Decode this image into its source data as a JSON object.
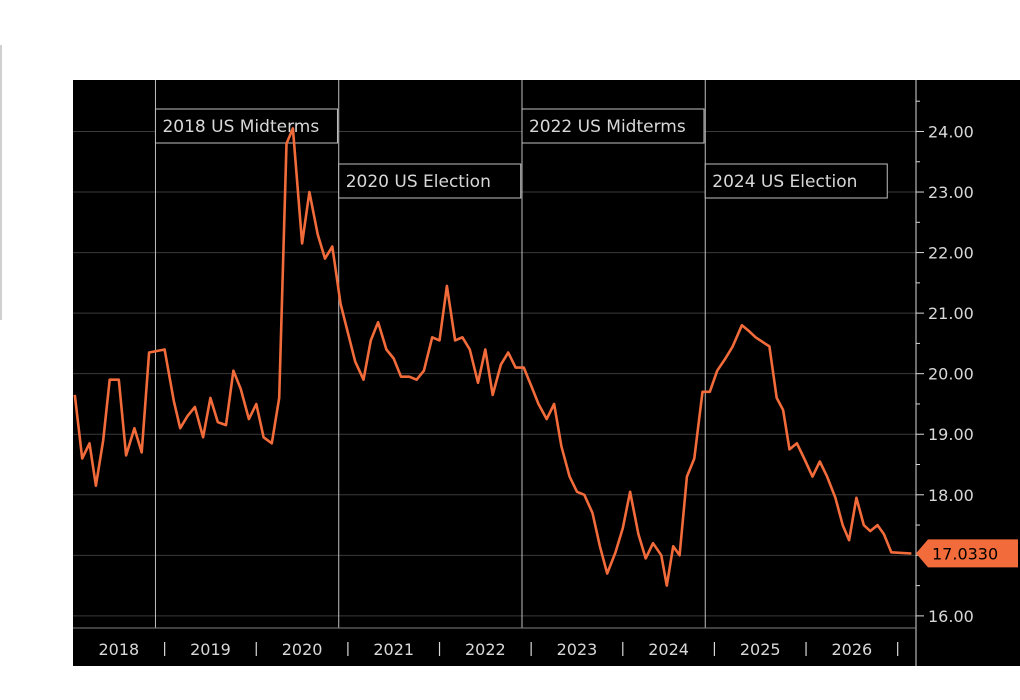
{
  "chart_data": {
    "type": "line",
    "title": "",
    "xlabel": "",
    "ylabel": "",
    "ylim": [
      15.8,
      24.85
    ],
    "xlim": [
      2017.75,
      2026.95
    ],
    "y_ticks": [
      "16.00",
      "17.00",
      "18.00",
      "19.00",
      "20.00",
      "21.00",
      "22.00",
      "23.00",
      "24.00"
    ],
    "y_tick_values": [
      16,
      17,
      18,
      19,
      20,
      21,
      22,
      23,
      24
    ],
    "x_tick_labels": [
      "2018",
      "2019",
      "2020",
      "2021",
      "2022",
      "2023",
      "2024",
      "2025",
      "2026"
    ],
    "x_tick_centers": [
      2018.25,
      2019.25,
      2020.25,
      2021.25,
      2022.25,
      2023.25,
      2024.25,
      2025.25,
      2026.25
    ],
    "x_tick_separators": [
      2018.75,
      2019.75,
      2020.75,
      2021.75,
      2022.75,
      2023.75,
      2024.75,
      2025.75,
      2026.75
    ],
    "grid": true,
    "last_value_label": "17.0330",
    "last_value": 17.033,
    "colors": {
      "background": "#000000",
      "series": "#f26b3a",
      "grid": "#3a3a3a",
      "text": "#d8d8d8",
      "label_bg": "#f26b3a",
      "event_line": "#bfbfbf"
    },
    "events": [
      {
        "label": "2018 US Midterms",
        "x": 2018.65
      },
      {
        "label": "2020 US Election",
        "x": 2020.65
      },
      {
        "label": "2022 US Midterms",
        "x": 2022.65
      },
      {
        "label": "2024 US Election",
        "x": 2024.65
      }
    ],
    "series": [
      {
        "points": [
          [
            2017.77,
            19.65
          ],
          [
            2017.85,
            18.6
          ],
          [
            2017.93,
            18.85
          ],
          [
            2018.0,
            18.15
          ],
          [
            2018.08,
            18.9
          ],
          [
            2018.15,
            19.9
          ],
          [
            2018.25,
            19.9
          ],
          [
            2018.33,
            18.65
          ],
          [
            2018.42,
            19.1
          ],
          [
            2018.5,
            18.7
          ],
          [
            2018.58,
            20.35
          ],
          [
            2018.75,
            20.4
          ],
          [
            2018.85,
            19.55
          ],
          [
            2018.92,
            19.1
          ],
          [
            2019.0,
            19.3
          ],
          [
            2019.08,
            19.45
          ],
          [
            2019.17,
            18.95
          ],
          [
            2019.25,
            19.6
          ],
          [
            2019.33,
            19.2
          ],
          [
            2019.42,
            19.15
          ],
          [
            2019.5,
            20.05
          ],
          [
            2019.58,
            19.75
          ],
          [
            2019.67,
            19.25
          ],
          [
            2019.75,
            19.5
          ],
          [
            2019.83,
            18.95
          ],
          [
            2019.92,
            18.85
          ],
          [
            2020.0,
            19.6
          ],
          [
            2020.08,
            23.8
          ],
          [
            2020.15,
            24.05
          ],
          [
            2020.25,
            22.15
          ],
          [
            2020.33,
            23.0
          ],
          [
            2020.42,
            22.3
          ],
          [
            2020.5,
            21.9
          ],
          [
            2020.58,
            22.1
          ],
          [
            2020.67,
            21.15
          ],
          [
            2020.83,
            20.2
          ],
          [
            2020.92,
            19.9
          ],
          [
            2021.0,
            20.55
          ],
          [
            2021.08,
            20.85
          ],
          [
            2021.17,
            20.4
          ],
          [
            2021.25,
            20.25
          ],
          [
            2021.33,
            19.95
          ],
          [
            2021.42,
            19.95
          ],
          [
            2021.5,
            19.9
          ],
          [
            2021.58,
            20.05
          ],
          [
            2021.67,
            20.6
          ],
          [
            2021.75,
            20.55
          ],
          [
            2021.83,
            21.45
          ],
          [
            2021.92,
            20.55
          ],
          [
            2022.0,
            20.6
          ],
          [
            2022.08,
            20.4
          ],
          [
            2022.17,
            19.85
          ],
          [
            2022.25,
            20.4
          ],
          [
            2022.33,
            19.65
          ],
          [
            2022.42,
            20.15
          ],
          [
            2022.5,
            20.35
          ],
          [
            2022.58,
            20.1
          ],
          [
            2022.67,
            20.1
          ],
          [
            2022.75,
            19.8
          ],
          [
            2022.83,
            19.5
          ],
          [
            2022.92,
            19.25
          ],
          [
            2023.0,
            19.5
          ],
          [
            2023.08,
            18.8
          ],
          [
            2023.17,
            18.3
          ],
          [
            2023.25,
            18.05
          ],
          [
            2023.33,
            18.0
          ],
          [
            2023.42,
            17.7
          ],
          [
            2023.5,
            17.15
          ],
          [
            2023.58,
            16.7
          ],
          [
            2023.67,
            17.05
          ],
          [
            2023.75,
            17.45
          ],
          [
            2023.83,
            18.05
          ],
          [
            2023.92,
            17.35
          ],
          [
            2024.0,
            16.95
          ],
          [
            2024.08,
            17.2
          ],
          [
            2024.17,
            17.0
          ],
          [
            2024.23,
            16.5
          ],
          [
            2024.3,
            17.15
          ],
          [
            2024.37,
            17.0
          ],
          [
            2024.45,
            18.3
          ],
          [
            2024.53,
            18.6
          ],
          [
            2024.62,
            19.7
          ],
          [
            2024.7,
            19.7
          ],
          [
            2024.78,
            20.05
          ],
          [
            2024.87,
            20.25
          ],
          [
            2024.95,
            20.45
          ],
          [
            2025.05,
            20.8
          ],
          [
            2025.13,
            20.7
          ],
          [
            2025.2,
            20.6
          ],
          [
            2025.3,
            20.5
          ],
          [
            2025.35,
            20.45
          ],
          [
            2025.43,
            19.6
          ],
          [
            2025.5,
            19.4
          ],
          [
            2025.57,
            18.75
          ],
          [
            2025.65,
            18.85
          ],
          [
            2025.73,
            18.6
          ],
          [
            2025.82,
            18.3
          ],
          [
            2025.9,
            18.55
          ],
          [
            2025.98,
            18.3
          ],
          [
            2026.07,
            17.95
          ],
          [
            2026.15,
            17.5
          ],
          [
            2026.22,
            17.25
          ],
          [
            2026.3,
            17.95
          ],
          [
            2026.38,
            17.5
          ],
          [
            2026.45,
            17.4
          ],
          [
            2026.53,
            17.5
          ],
          [
            2026.6,
            17.35
          ],
          [
            2026.68,
            17.05
          ],
          [
            2026.9,
            17.03
          ]
        ]
      }
    ]
  }
}
